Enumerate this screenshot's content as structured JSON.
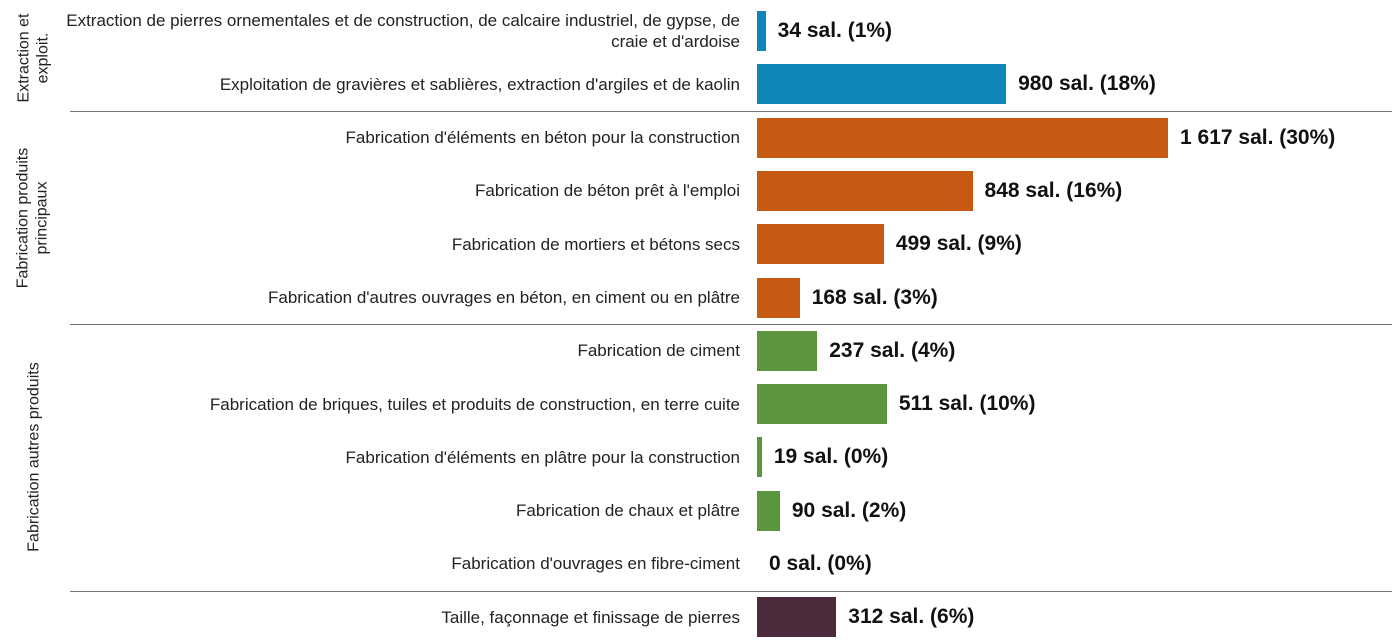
{
  "chart_data": {
    "type": "bar",
    "orientation": "horizontal",
    "groups": [
      {
        "label": "Extraction et exploit.",
        "color": "#0e86b8",
        "categories": [
          "Extraction de pierres ornementales et de construction, de calcaire industriel, de gypse, de craie et d'ardoise",
          "Exploitation de gravières et sablières, extraction d'argiles et de kaolin"
        ],
        "values": [
          34,
          980
        ],
        "value_labels": [
          "34 sal. (1%)",
          "980 sal. (18%)"
        ]
      },
      {
        "label": "Fabrication produits principaux",
        "color": "#c65a14",
        "categories": [
          "Fabrication d'éléments en béton pour la construction",
          "Fabrication de béton prêt à l'emploi",
          "Fabrication de mortiers et bétons secs",
          "Fabrication d'autres ouvrages en béton, en ciment ou en plâtre"
        ],
        "values": [
          1617,
          848,
          499,
          168
        ],
        "value_labels": [
          "1 617 sal. (30%)",
          "848 sal. (16%)",
          "499 sal. (9%)",
          "168 sal. (3%)"
        ]
      },
      {
        "label": "Fabrication autres produits",
        "color": "#5b9540",
        "categories": [
          "Fabrication de ciment",
          "Fabrication de briques, tuiles et produits de construction, en terre cuite",
          "Fabrication d'éléments en plâtre pour la construction",
          "Fabrication de chaux et plâtre",
          "Fabrication d'ouvrages en fibre-ciment"
        ],
        "values": [
          237,
          511,
          19,
          90,
          0
        ],
        "value_labels": [
          "237 sal. (4%)",
          "511 sal. (10%)",
          "19 sal. (0%)",
          "90 sal. (2%)",
          "0 sal. (0%)"
        ]
      },
      {
        "label": null,
        "color": "#4b2a3b",
        "categories": [
          "Taille, façonnage et finissage de pierres"
        ],
        "values": [
          312
        ],
        "value_labels": [
          "312 sal. (6%)"
        ]
      }
    ]
  }
}
